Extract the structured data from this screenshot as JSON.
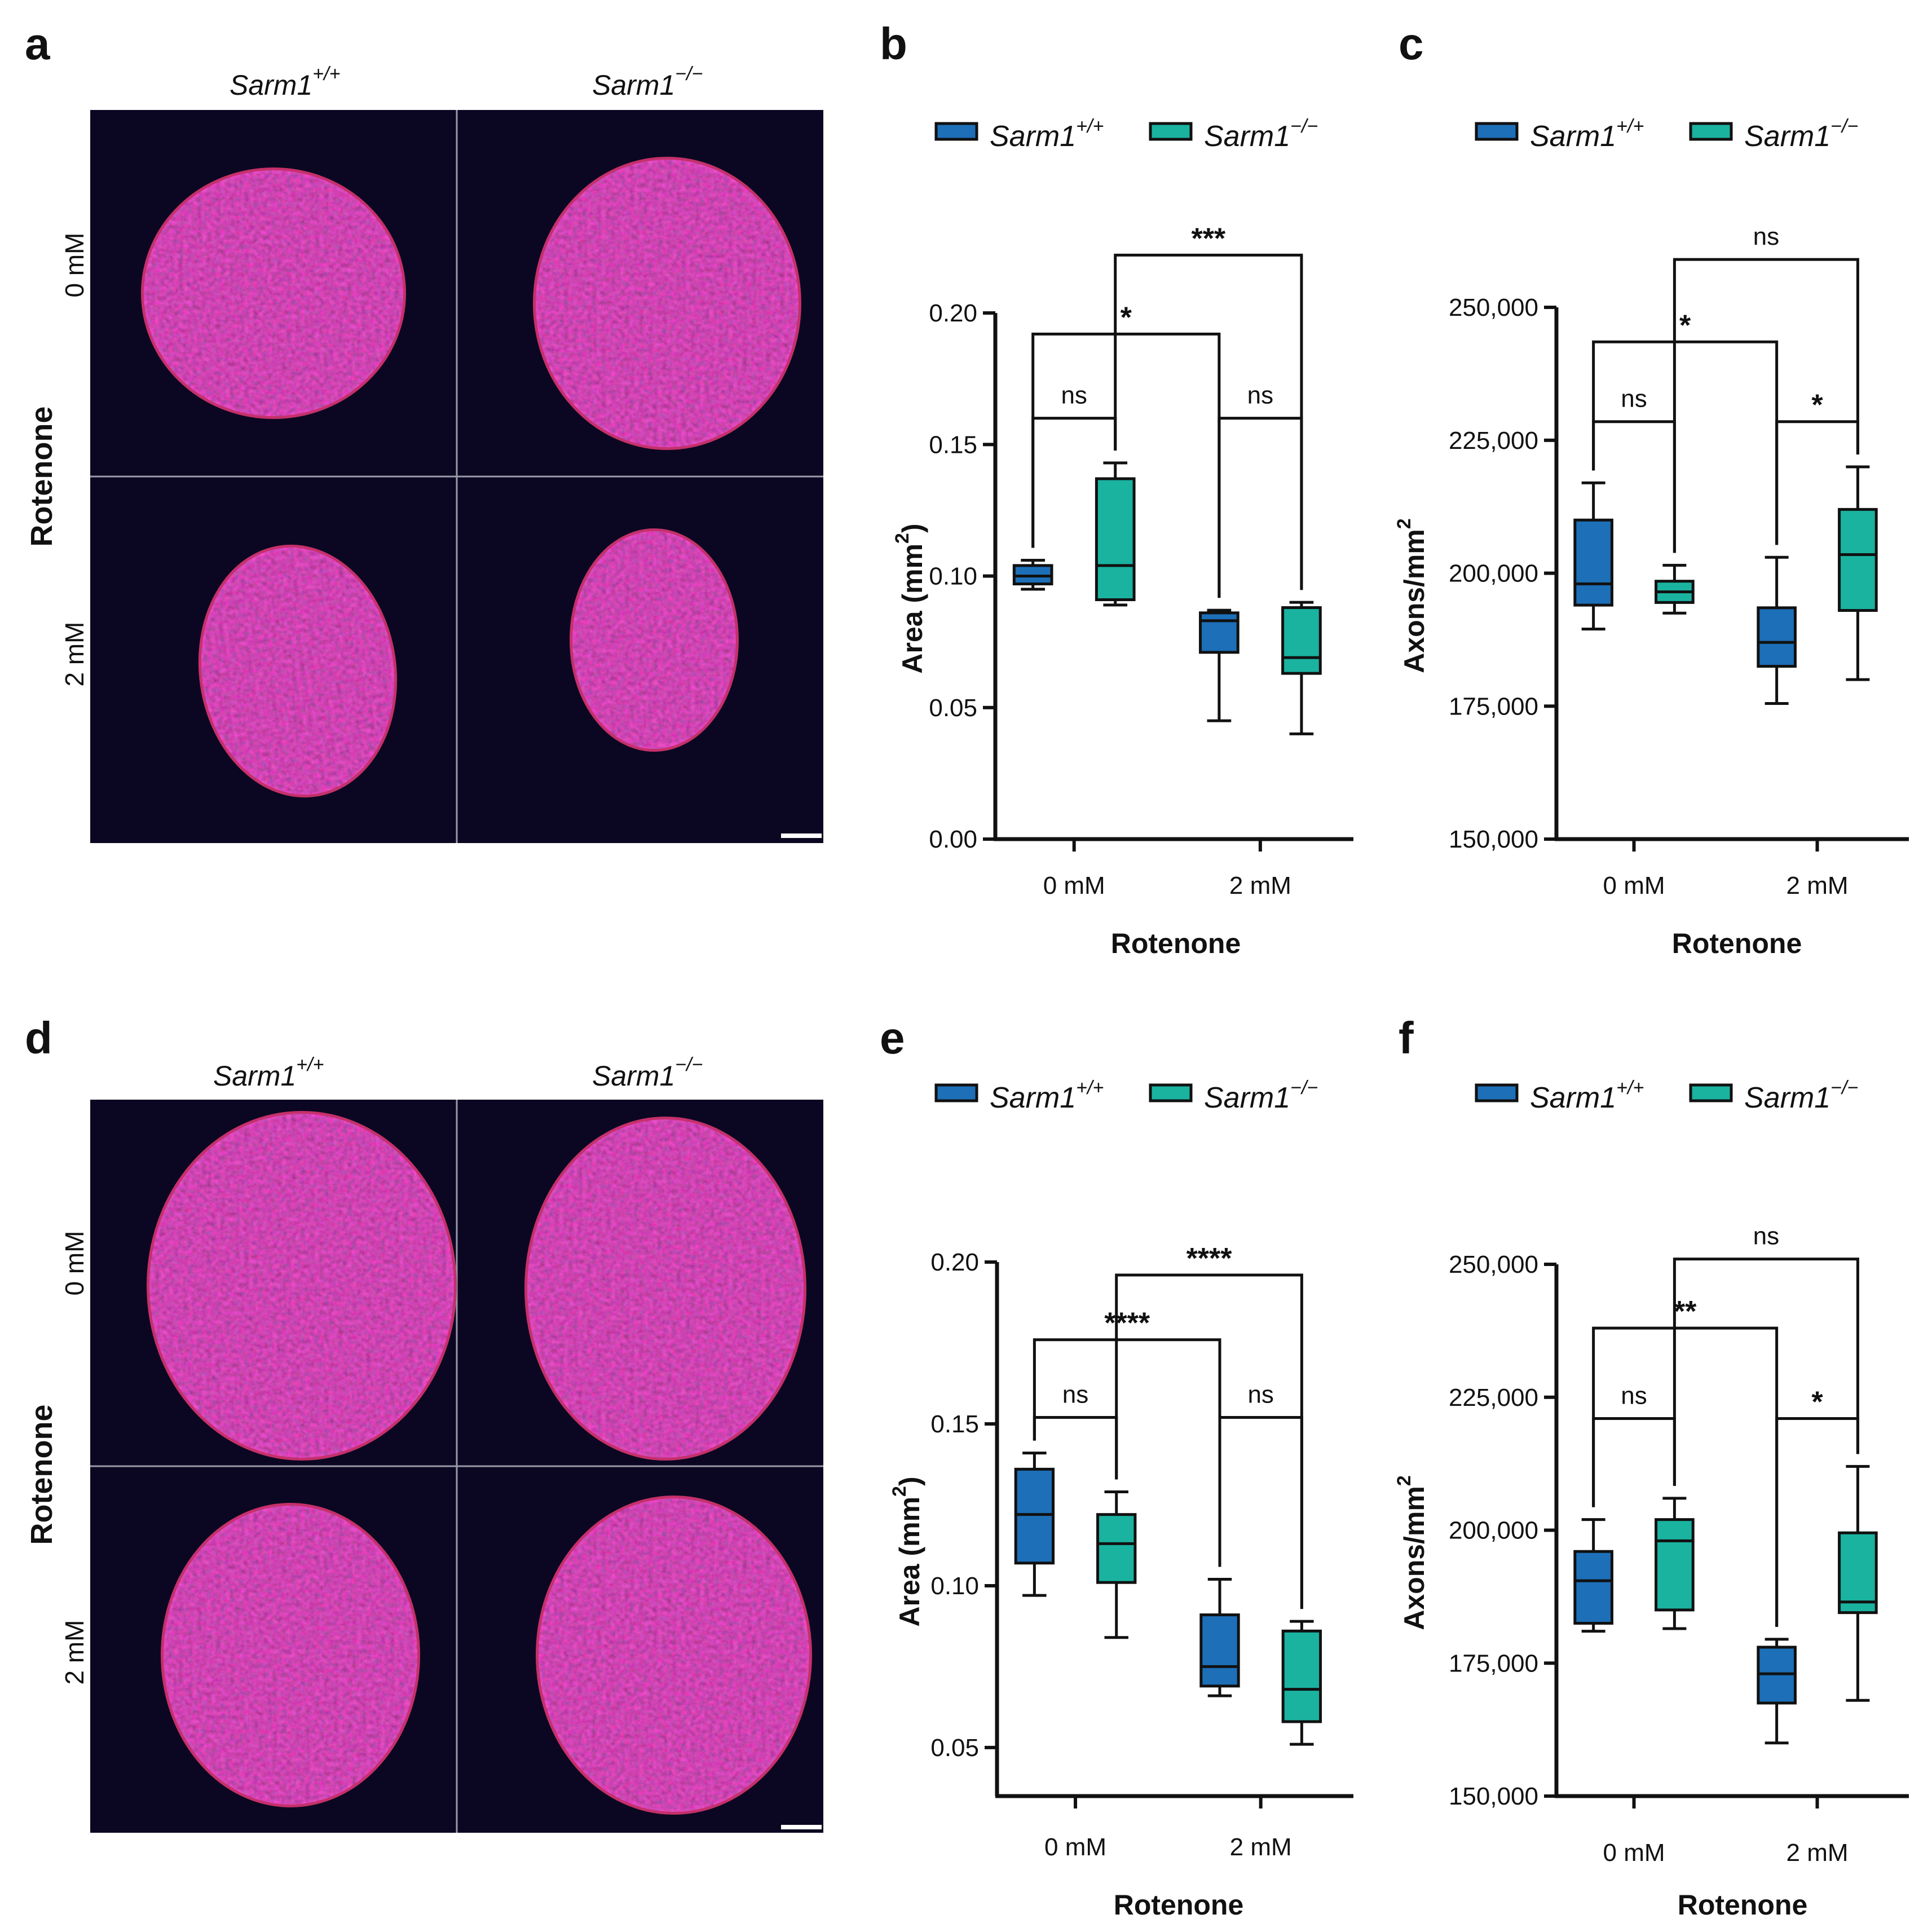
{
  "figure": {
    "panel_a": {
      "label": "a",
      "col_titles": [
        {
          "base": "Sarm1",
          "sup": "+/+"
        },
        {
          "base": "Sarm1",
          "sup": "−/−"
        }
      ],
      "row_titles": [
        "0 mM",
        "2 mM"
      ],
      "side_title": "Rotenone"
    },
    "panel_d": {
      "label": "d",
      "col_titles": [
        {
          "base": "Sarm1",
          "sup": "+/+"
        },
        {
          "base": "Sarm1",
          "sup": "−/−"
        }
      ],
      "row_titles": [
        "0 mM",
        "2 mM"
      ],
      "side_title": "Rotenone"
    }
  },
  "colors": {
    "wt": "#1d6fb8",
    "ko": "#1ab3a0",
    "image_bg": "#0b0722",
    "tissue": "#8a1f3c",
    "tissue_edge": "#c5306a",
    "nuclei": "#3a2bb0"
  },
  "chart_data": [
    {
      "id": "b",
      "label": "b",
      "type": "box",
      "legend": [
        {
          "base": "Sarm1",
          "sup": "+/+"
        },
        {
          "base": "Sarm1",
          "sup": "−/−"
        }
      ],
      "categories": [
        "0 mM",
        "2 mM"
      ],
      "xlabel": "Rotenone",
      "ylabel": {
        "base": "Area (mm",
        "sup": "2",
        "end": ")"
      },
      "ylim": [
        0.0,
        0.2
      ],
      "yticks": [
        0.0,
        0.05,
        0.1,
        0.15,
        0.2
      ],
      "ytick_labels": [
        "0.00",
        "0.05",
        "0.10",
        "0.15",
        "0.20"
      ],
      "series": [
        {
          "name": "Sarm1+/+",
          "boxes": [
            {
              "min": 0.095,
              "q1": 0.097,
              "median": 0.1,
              "q3": 0.104,
              "max": 0.106
            },
            {
              "min": 0.045,
              "q1": 0.071,
              "median": 0.083,
              "q3": 0.086,
              "max": 0.087
            }
          ]
        },
        {
          "name": "Sarm1−/−",
          "boxes": [
            {
              "min": 0.089,
              "q1": 0.091,
              "median": 0.104,
              "q3": 0.137,
              "max": 0.143
            },
            {
              "min": 0.04,
              "q1": 0.063,
              "median": 0.069,
              "q3": 0.088,
              "max": 0.09
            }
          ]
        }
      ],
      "comparisons": [
        {
          "a": [
            0,
            0
          ],
          "b": [
            0,
            1
          ],
          "label": "ns",
          "y": 0.16
        },
        {
          "a": [
            1,
            0
          ],
          "b": [
            1,
            1
          ],
          "label": "ns",
          "y": 0.16
        },
        {
          "a": [
            0,
            0
          ],
          "b": [
            1,
            0
          ],
          "label": "*",
          "y": 0.192
        },
        {
          "a": [
            0,
            1
          ],
          "b": [
            1,
            1
          ],
          "label": "***",
          "y": 0.222
        }
      ]
    },
    {
      "id": "c",
      "label": "c",
      "type": "box",
      "legend": [
        {
          "base": "Sarm1",
          "sup": "+/+"
        },
        {
          "base": "Sarm1",
          "sup": "−/−"
        }
      ],
      "categories": [
        "0 mM",
        "2 mM"
      ],
      "xlabel": "Rotenone",
      "ylabel": {
        "base": "Axons/mm",
        "sup": "2",
        "end": ""
      },
      "ylim": [
        150000,
        250000
      ],
      "yticks": [
        150000,
        175000,
        200000,
        225000,
        250000
      ],
      "ytick_labels": [
        "150,000",
        "175,000",
        "200,000",
        "225,000",
        "250,000"
      ],
      "series": [
        {
          "name": "Sarm1+/+",
          "boxes": [
            {
              "min": 189500,
              "q1": 194000,
              "median": 198000,
              "q3": 210000,
              "max": 217000
            },
            {
              "min": 175500,
              "q1": 182500,
              "median": 187000,
              "q3": 193500,
              "max": 203000
            }
          ]
        },
        {
          "name": "Sarm1−/−",
          "boxes": [
            {
              "min": 192500,
              "q1": 194500,
              "median": 196500,
              "q3": 198500,
              "max": 201500
            },
            {
              "min": 180000,
              "q1": 193000,
              "median": 203500,
              "q3": 212000,
              "max": 220000
            }
          ]
        }
      ],
      "comparisons": [
        {
          "a": [
            0,
            0
          ],
          "b": [
            0,
            1
          ],
          "label": "ns",
          "y": 228500
        },
        {
          "a": [
            1,
            0
          ],
          "b": [
            1,
            1
          ],
          "label": "*",
          "y": 228500
        },
        {
          "a": [
            0,
            0
          ],
          "b": [
            1,
            0
          ],
          "label": "*",
          "y": 243500
        },
        {
          "a": [
            0,
            1
          ],
          "b": [
            1,
            1
          ],
          "label": "ns",
          "y": 259000
        }
      ]
    },
    {
      "id": "e",
      "label": "e",
      "type": "box",
      "legend": [
        {
          "base": "Sarm1",
          "sup": "+/+"
        },
        {
          "base": "Sarm1",
          "sup": "−/−"
        }
      ],
      "categories": [
        "0 mM",
        "2 mM"
      ],
      "xlabel": "Rotenone",
      "ylabel": {
        "base": "Area (mm",
        "sup": "2",
        "end": ")"
      },
      "ylim": [
        0.035,
        0.2
      ],
      "yticks": [
        0.05,
        0.1,
        0.15,
        0.2
      ],
      "ytick_labels": [
        "0.05",
        "0.10",
        "0.15",
        "0.20"
      ],
      "series": [
        {
          "name": "Sarm1+/+",
          "boxes": [
            {
              "min": 0.097,
              "q1": 0.107,
              "median": 0.122,
              "q3": 0.136,
              "max": 0.141
            },
            {
              "min": 0.066,
              "q1": 0.069,
              "median": 0.075,
              "q3": 0.091,
              "max": 0.102
            }
          ]
        },
        {
          "name": "Sarm1−/−",
          "boxes": [
            {
              "min": 0.084,
              "q1": 0.101,
              "median": 0.113,
              "q3": 0.122,
              "max": 0.129
            },
            {
              "min": 0.051,
              "q1": 0.058,
              "median": 0.068,
              "q3": 0.086,
              "max": 0.089
            }
          ]
        }
      ],
      "comparisons": [
        {
          "a": [
            0,
            0
          ],
          "b": [
            0,
            1
          ],
          "label": "ns",
          "y": 0.152
        },
        {
          "a": [
            1,
            0
          ],
          "b": [
            1,
            1
          ],
          "label": "ns",
          "y": 0.152
        },
        {
          "a": [
            0,
            0
          ],
          "b": [
            1,
            0
          ],
          "label": "****",
          "y": 0.176
        },
        {
          "a": [
            0,
            1
          ],
          "b": [
            1,
            1
          ],
          "label": "****",
          "y": 0.196
        }
      ]
    },
    {
      "id": "f",
      "label": "f",
      "type": "box",
      "legend": [
        {
          "base": "Sarm1",
          "sup": "+/+"
        },
        {
          "base": "Sarm1",
          "sup": "−/−"
        }
      ],
      "categories": [
        "0 mM",
        "2 mM"
      ],
      "xlabel": "Rotenone",
      "ylabel": {
        "base": "Axons/mm",
        "sup": "2",
        "end": ""
      },
      "ylim": [
        150000,
        250000
      ],
      "yticks": [
        150000,
        175000,
        200000,
        225000,
        250000
      ],
      "ytick_labels": [
        "150,000",
        "175,000",
        "200,000",
        "225,000",
        "250,000"
      ],
      "series": [
        {
          "name": "Sarm1+/+",
          "boxes": [
            {
              "min": 181000,
              "q1": 182500,
              "median": 190500,
              "q3": 196000,
              "max": 202000
            },
            {
              "min": 160000,
              "q1": 167500,
              "median": 173000,
              "q3": 178000,
              "max": 179500
            }
          ]
        },
        {
          "name": "Sarm1−/−",
          "boxes": [
            {
              "min": 181500,
              "q1": 185000,
              "median": 198000,
              "q3": 202000,
              "max": 206000
            },
            {
              "min": 168000,
              "q1": 184500,
              "median": 186500,
              "q3": 199500,
              "max": 212000
            }
          ]
        }
      ],
      "comparisons": [
        {
          "a": [
            0,
            0
          ],
          "b": [
            0,
            1
          ],
          "label": "ns",
          "y": 221000
        },
        {
          "a": [
            1,
            0
          ],
          "b": [
            1,
            1
          ],
          "label": "*",
          "y": 221000
        },
        {
          "a": [
            0,
            0
          ],
          "b": [
            1,
            0
          ],
          "label": "**",
          "y": 238000
        },
        {
          "a": [
            0,
            1
          ],
          "b": [
            1,
            1
          ],
          "label": "ns",
          "y": 251000
        }
      ]
    }
  ]
}
